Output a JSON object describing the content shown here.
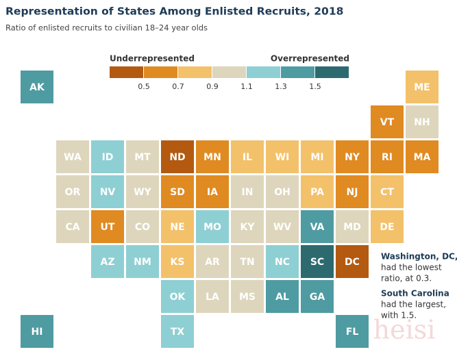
{
  "header": {
    "title": "Representation of States Among Enlisted Recruits, 2018",
    "subtitle": "Ratio of enlisted recruits to civilian 18–24 year olds"
  },
  "legend": {
    "low_label": "Underrepresented",
    "high_label": "Overrepresented",
    "colors": [
      "#b35a10",
      "#e08a22",
      "#f3c16a",
      "#ddd6bd",
      "#8ecfd3",
      "#4f9ba2",
      "#2d6a6f"
    ],
    "ticks": [
      0.5,
      0.7,
      0.9,
      1.1,
      1.3,
      1.5
    ]
  },
  "tiles": [
    {
      "label": "AK",
      "color": "#4f9ba2"
    },
    {
      "label": "ME",
      "color": "#f3c16a"
    },
    {
      "label": "VT",
      "color": "#e08a22"
    },
    {
      "label": "NH",
      "color": "#ddd6bd"
    },
    {
      "label": "WA",
      "color": "#ddd6bd"
    },
    {
      "label": "ID",
      "color": "#8ecfd3"
    },
    {
      "label": "MT",
      "color": "#ddd6bd"
    },
    {
      "label": "ND",
      "color": "#b35a10"
    },
    {
      "label": "MN",
      "color": "#e08a22"
    },
    {
      "label": "IL",
      "color": "#f3c16a"
    },
    {
      "label": "WI",
      "color": "#f3c16a"
    },
    {
      "label": "MI",
      "color": "#f3c16a"
    },
    {
      "label": "NY",
      "color": "#e08a22"
    },
    {
      "label": "RI",
      "color": "#e08a22"
    },
    {
      "label": "MA",
      "color": "#e08a22"
    },
    {
      "label": "OR",
      "color": "#ddd6bd"
    },
    {
      "label": "NV",
      "color": "#8ecfd3"
    },
    {
      "label": "WY",
      "color": "#ddd6bd"
    },
    {
      "label": "SD",
      "color": "#e08a22"
    },
    {
      "label": "IA",
      "color": "#e08a22"
    },
    {
      "label": "IN",
      "color": "#ddd6bd"
    },
    {
      "label": "OH",
      "color": "#ddd6bd"
    },
    {
      "label": "PA",
      "color": "#f3c16a"
    },
    {
      "label": "NJ",
      "color": "#e08a22"
    },
    {
      "label": "CT",
      "color": "#f3c16a"
    },
    {
      "label": "CA",
      "color": "#ddd6bd"
    },
    {
      "label": "UT",
      "color": "#e08a22"
    },
    {
      "label": "CO",
      "color": "#ddd6bd"
    },
    {
      "label": "NE",
      "color": "#f3c16a"
    },
    {
      "label": "MO",
      "color": "#8ecfd3"
    },
    {
      "label": "KY",
      "color": "#ddd6bd"
    },
    {
      "label": "WV",
      "color": "#ddd6bd"
    },
    {
      "label": "VA",
      "color": "#4f9ba2"
    },
    {
      "label": "MD",
      "color": "#ddd6bd"
    },
    {
      "label": "DE",
      "color": "#f3c16a"
    },
    {
      "label": "AZ",
      "color": "#8ecfd3"
    },
    {
      "label": "NM",
      "color": "#8ecfd3"
    },
    {
      "label": "KS",
      "color": "#f3c16a"
    },
    {
      "label": "AR",
      "color": "#ddd6bd"
    },
    {
      "label": "TN",
      "color": "#ddd6bd"
    },
    {
      "label": "NC",
      "color": "#8ecfd3"
    },
    {
      "label": "SC",
      "color": "#2d6a6f"
    },
    {
      "label": "DC",
      "color": "#b35a10"
    },
    {
      "label": "OK",
      "color": "#8ecfd3"
    },
    {
      "label": "LA",
      "color": "#ddd6bd"
    },
    {
      "label": "MS",
      "color": "#ddd6bd"
    },
    {
      "label": "AL",
      "color": "#4f9ba2"
    },
    {
      "label": "GA",
      "color": "#4f9ba2"
    },
    {
      "label": "HI",
      "color": "#4f9ba2"
    },
    {
      "label": "TX",
      "color": "#8ecfd3"
    },
    {
      "label": "FL",
      "color": "#4f9ba2"
    }
  ],
  "annotations": [
    {
      "bold": "Washington, DC,",
      "lines": [
        "had the lowest",
        "ratio, at 0.3."
      ]
    },
    {
      "bold": "South Carolina",
      "lines": [
        "had the largest,",
        "with 1.5."
      ]
    }
  ],
  "watermark": "heisi"
}
